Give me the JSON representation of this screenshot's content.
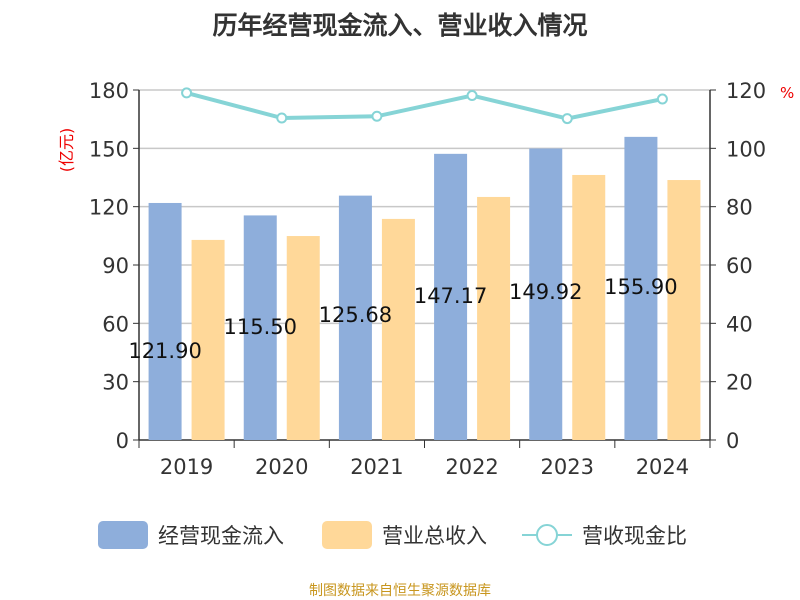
{
  "chart_data": {
    "type": "bar",
    "title": "历年经营现金流入、营业收入情况",
    "categories": [
      "2019",
      "2020",
      "2021",
      "2022",
      "2023",
      "2024"
    ],
    "series": [
      {
        "name": "经营现金流入",
        "type": "bar",
        "axis": "left",
        "color": "#8eaedb",
        "values": [
          121.9,
          115.5,
          125.68,
          147.17,
          149.92,
          155.9
        ],
        "labels": [
          "121.90",
          "115.50",
          "125.68",
          "147.17",
          "149.92",
          "155.90"
        ]
      },
      {
        "name": "营业总收入",
        "type": "bar",
        "axis": "left",
        "color": "#ffd899",
        "values": [
          102.9,
          104.9,
          113.7,
          125.0,
          136.3,
          133.7
        ]
      },
      {
        "name": "营收现金比",
        "type": "line",
        "axis": "right",
        "color": "#86d4d6",
        "values": [
          119.0,
          110.4,
          111.0,
          118.1,
          110.2,
          116.9
        ]
      }
    ],
    "ylabel": "(亿元)",
    "y2label": "%",
    "ylim": [
      0,
      180
    ],
    "yticks": [
      0,
      30,
      60,
      90,
      120,
      150,
      180
    ],
    "y2lim": [
      0,
      120
    ],
    "y2ticks": [
      0,
      20,
      40,
      60,
      80,
      100,
      120
    ],
    "grid": true,
    "legend": "bottom"
  },
  "source": "制图数据来自恒生聚源数据库"
}
